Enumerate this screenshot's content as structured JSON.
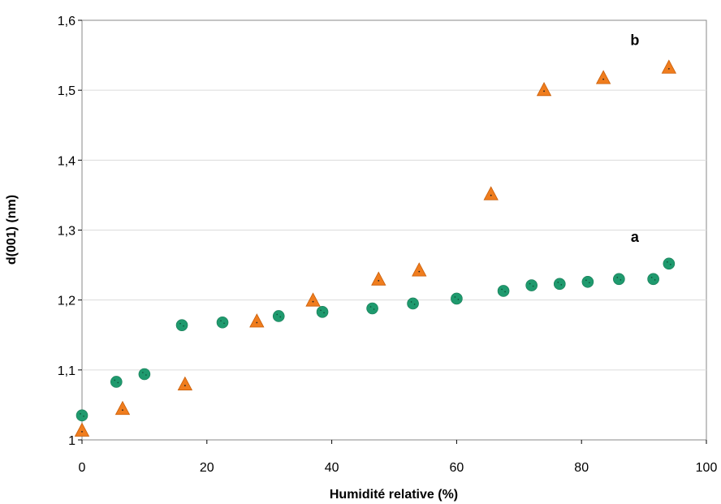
{
  "chart_data": {
    "type": "scatter",
    "title": "",
    "xlabel": "Humidité relative (%)",
    "ylabel": "d(001) (nm)",
    "xlim": [
      0,
      100
    ],
    "ylim": [
      1,
      1.6
    ],
    "x_ticks": [
      "0",
      "20",
      "40",
      "60",
      "80",
      "100"
    ],
    "y_ticks": [
      "1",
      "1,1",
      "1,2",
      "1,3",
      "1,4",
      "1,5",
      "1,6"
    ],
    "grid": "horizontal",
    "legend": "none",
    "series": [
      {
        "name": "a",
        "marker": "circle",
        "color": "#1f9a6e",
        "x": [
          0,
          5.5,
          10,
          16,
          22.5,
          31.5,
          38.5,
          46.5,
          53,
          60,
          67.5,
          72,
          76.5,
          81,
          86,
          91.5,
          94
        ],
        "y": [
          1.035,
          1.083,
          1.094,
          1.164,
          1.168,
          1.177,
          1.183,
          1.188,
          1.195,
          1.202,
          1.213,
          1.221,
          1.223,
          1.226,
          1.23,
          1.23,
          1.252
        ]
      },
      {
        "name": "b",
        "marker": "triangle",
        "color": "#f07d1e",
        "x": [
          0,
          6.5,
          16.5,
          28,
          37,
          47.5,
          54,
          65.5,
          74,
          83.5,
          94
        ],
        "y": [
          1.014,
          1.045,
          1.08,
          1.17,
          1.2,
          1.23,
          1.243,
          1.352,
          1.501,
          1.518,
          1.533
        ]
      }
    ]
  }
}
